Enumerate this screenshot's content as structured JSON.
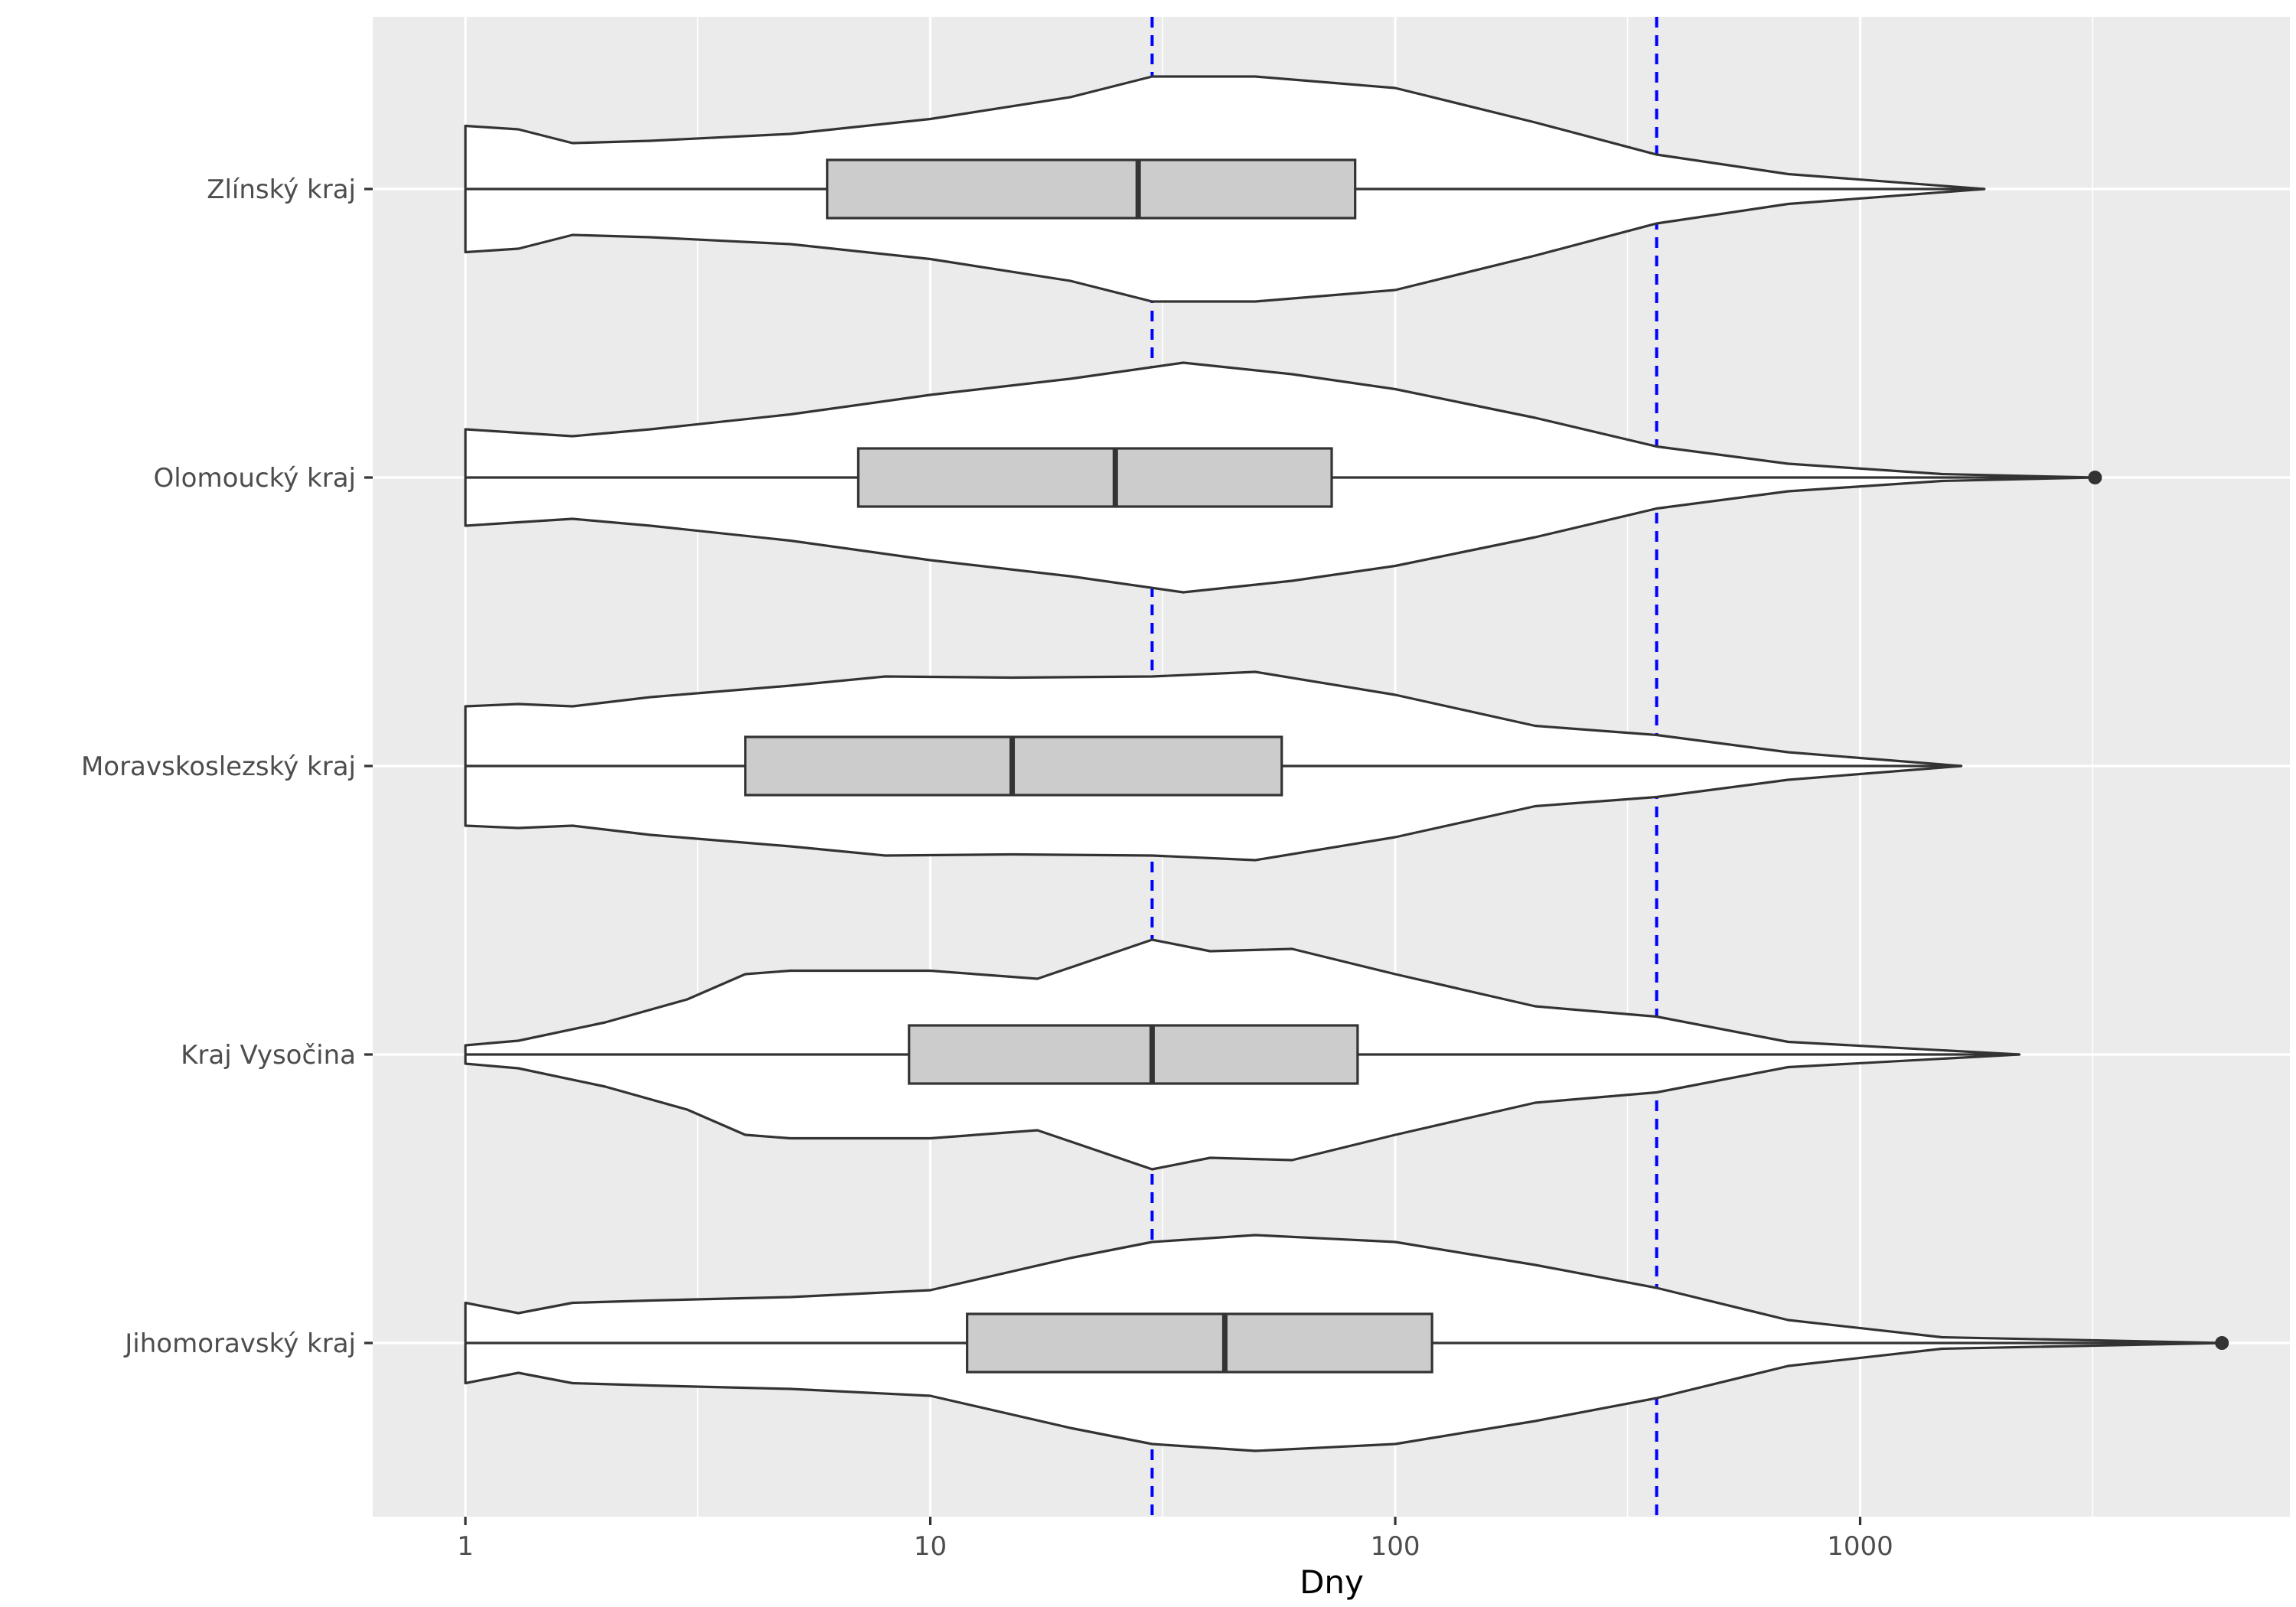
{
  "chart_data": {
    "type": "violin",
    "xlabel": "Dny",
    "ylabel": "",
    "x_scale": "log10",
    "xlim": [
      0.632,
      8400
    ],
    "x_ticks": [
      {
        "value": 1,
        "label": "1"
      },
      {
        "value": 10,
        "label": "10"
      },
      {
        "value": 100,
        "label": "100"
      },
      {
        "value": 1000,
        "label": "1000"
      }
    ],
    "x_minor_ticks": [
      3.16,
      31.6,
      316,
      3162
    ],
    "grid": true,
    "panel_background": "#ebebeb",
    "grid_color": "#ffffff",
    "violin_fill": "#ffffff",
    "box_fill": "#cccccc",
    "line_color": "#333333",
    "reference_line_color": "#0000ff",
    "reference_lines": [
      {
        "x": 30,
        "style": "dashed"
      },
      {
        "x": 365,
        "style": "dashed"
      }
    ],
    "categories": [
      "Zlínský kraj",
      "Olomoucký kraj",
      "Moravskoslezský kraj",
      "Kraj Vysočina",
      "Jihomoravský kraj"
    ],
    "series": [
      {
        "category": "Zlínský kraj",
        "box": {
          "whisker_low": 1,
          "q1": 6,
          "median": 28,
          "q3": 82,
          "whisker_high": 1850
        },
        "outliers": [],
        "density_profile": [
          [
            1,
            0.55
          ],
          [
            1.3,
            0.52
          ],
          [
            1.7,
            0.4
          ],
          [
            2.5,
            0.42
          ],
          [
            5,
            0.48
          ],
          [
            10,
            0.61
          ],
          [
            20,
            0.8
          ],
          [
            30,
            0.98
          ],
          [
            50,
            0.98
          ],
          [
            100,
            0.88
          ],
          [
            200,
            0.58
          ],
          [
            365,
            0.3
          ],
          [
            700,
            0.13
          ],
          [
            1850,
            0.0
          ]
        ]
      },
      {
        "category": "Olomoucký kraj",
        "box": {
          "whisker_low": 1,
          "q1": 7,
          "median": 25,
          "q3": 73,
          "whisker_high": 3000
        },
        "outliers": [
          3200
        ],
        "density_profile": [
          [
            1,
            0.42
          ],
          [
            1.3,
            0.39
          ],
          [
            1.7,
            0.36
          ],
          [
            2.5,
            0.42
          ],
          [
            5,
            0.55
          ],
          [
            10,
            0.72
          ],
          [
            20,
            0.86
          ],
          [
            35,
            1.0
          ],
          [
            60,
            0.9
          ],
          [
            100,
            0.77
          ],
          [
            200,
            0.52
          ],
          [
            365,
            0.27
          ],
          [
            700,
            0.12
          ],
          [
            1500,
            0.03
          ],
          [
            3200,
            0.0
          ]
        ]
      },
      {
        "category": "Moravskoslezský kraj",
        "box": {
          "whisker_low": 1,
          "q1": 4,
          "median": 15,
          "q3": 57,
          "whisker_high": 1650
        },
        "outliers": [],
        "density_profile": [
          [
            1,
            0.52
          ],
          [
            1.3,
            0.54
          ],
          [
            1.7,
            0.52
          ],
          [
            2.5,
            0.6
          ],
          [
            5,
            0.7
          ],
          [
            8,
            0.78
          ],
          [
            15,
            0.77
          ],
          [
            30,
            0.78
          ],
          [
            50,
            0.82
          ],
          [
            100,
            0.62
          ],
          [
            200,
            0.35
          ],
          [
            365,
            0.27
          ],
          [
            700,
            0.12
          ],
          [
            1650,
            0.0
          ]
        ]
      },
      {
        "category": "Kraj Vysočina",
        "box": {
          "whisker_low": 1,
          "q1": 9,
          "median": 30,
          "q3": 83,
          "whisker_high": 2200
        },
        "outliers": [],
        "density_profile": [
          [
            1,
            0.08
          ],
          [
            1.3,
            0.12
          ],
          [
            2,
            0.28
          ],
          [
            3,
            0.48
          ],
          [
            4,
            0.7
          ],
          [
            5,
            0.73
          ],
          [
            10,
            0.73
          ],
          [
            17,
            0.66
          ],
          [
            30,
            1.0
          ],
          [
            40,
            0.9
          ],
          [
            60,
            0.92
          ],
          [
            100,
            0.7
          ],
          [
            200,
            0.42
          ],
          [
            365,
            0.33
          ],
          [
            700,
            0.11
          ],
          [
            2200,
            0.0
          ]
        ]
      },
      {
        "category": "Jihomoravský kraj",
        "box": {
          "whisker_low": 1,
          "q1": 12,
          "median": 43,
          "q3": 120,
          "whisker_high": 5500
        },
        "outliers": [
          6000
        ],
        "density_profile": [
          [
            1,
            0.35
          ],
          [
            1.3,
            0.26
          ],
          [
            1.7,
            0.35
          ],
          [
            2.5,
            0.37
          ],
          [
            5,
            0.4
          ],
          [
            10,
            0.46
          ],
          [
            20,
            0.74
          ],
          [
            30,
            0.88
          ],
          [
            50,
            0.94
          ],
          [
            100,
            0.88
          ],
          [
            200,
            0.68
          ],
          [
            365,
            0.48
          ],
          [
            700,
            0.2
          ],
          [
            1500,
            0.05
          ],
          [
            6000,
            0.0
          ]
        ]
      }
    ]
  }
}
